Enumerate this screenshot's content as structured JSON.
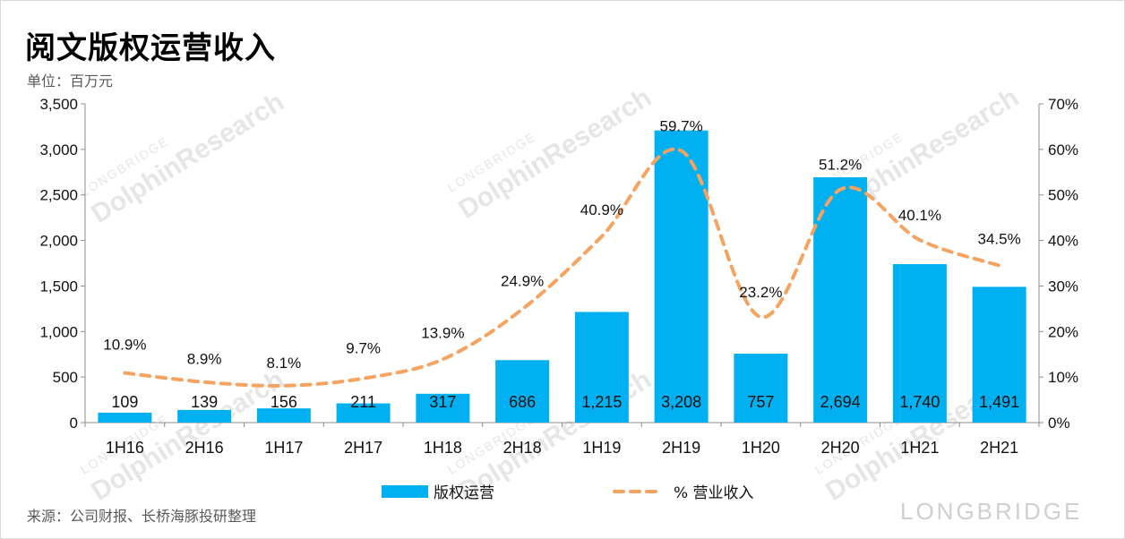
{
  "header": {
    "title": "阅文版权运营收入",
    "unit": "单位：百万元"
  },
  "footer": {
    "source": "来源：公司财报、长桥海豚投研整理",
    "watermark": "LONGBRIDGE",
    "watermark_diagonal": "DolphinResearch",
    "watermark_small": "LONGBRIDGE"
  },
  "colors": {
    "bar": "#00B0F0",
    "line": "#F4A460",
    "axis": "#8c8c8c"
  },
  "chart_data": {
    "type": "bar",
    "categories": [
      "1H16",
      "2H16",
      "1H17",
      "2H17",
      "1H18",
      "2H18",
      "1H19",
      "2H19",
      "1H20",
      "2H20",
      "1H21",
      "2H21"
    ],
    "series": [
      {
        "name": "版权运营",
        "type": "bar",
        "axis": "left",
        "values": [
          109,
          139,
          156,
          211,
          317,
          686,
          1215,
          3208,
          757,
          2694,
          1740,
          1491
        ],
        "labels": [
          "109",
          "139",
          "156",
          "211",
          "317",
          "686",
          "1,215",
          "3,208",
          "757",
          "2,694",
          "1,740",
          "1,491"
        ]
      },
      {
        "name": "% 营业收入",
        "type": "line",
        "style": "dashed",
        "axis": "right",
        "values": [
          10.9,
          8.9,
          8.1,
          9.7,
          13.9,
          24.9,
          40.9,
          59.7,
          23.2,
          51.2,
          40.1,
          34.5
        ],
        "labels": [
          "10.9%",
          "8.9%",
          "8.1%",
          "9.7%",
          "13.9%",
          "24.9%",
          "40.9%",
          "59.7%",
          "23.2%",
          "51.2%",
          "40.1%",
          "34.5%"
        ]
      }
    ],
    "ylim": [
      0,
      3500
    ],
    "y_ticks": [
      "0",
      "500",
      "1,000",
      "1,500",
      "2,000",
      "2,500",
      "3,000",
      "3,500"
    ],
    "y2lim": [
      0,
      70
    ],
    "y2_ticks": [
      "0%",
      "10%",
      "20%",
      "30%",
      "40%",
      "50%",
      "60%",
      "70%"
    ],
    "legend_position": "bottom",
    "grid": false
  }
}
